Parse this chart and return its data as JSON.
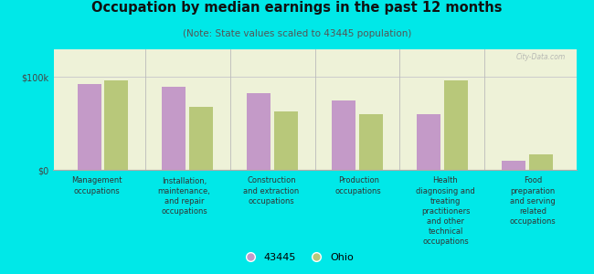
{
  "title": "Occupation by median earnings in the past 12 months",
  "subtitle": "(Note: State values scaled to 43445 population)",
  "background_color": "#00e8e8",
  "plot_bg_color": "#eef2d8",
  "categories": [
    "Management\noccupations",
    "Installation,\nmaintenance,\nand repair\noccupations",
    "Construction\nand extraction\noccupations",
    "Production\noccupations",
    "Health\ndiagnosing and\ntreating\npractitioners\nand other\ntechnical\noccupations",
    "Food\npreparation\nand serving\nrelated\noccupations"
  ],
  "values_43445": [
    93000,
    90000,
    83000,
    75000,
    60000,
    10000
  ],
  "values_ohio": [
    97000,
    68000,
    63000,
    60000,
    97000,
    17000
  ],
  "color_43445": "#c49ac8",
  "color_ohio": "#b8c87a",
  "ylim": [
    0,
    130000
  ],
  "ytick_val": 100000,
  "ytick_labels": [
    "$0",
    "$100k"
  ],
  "legend_43445": "43445",
  "legend_ohio": "Ohio",
  "watermark": "City-Data.com"
}
